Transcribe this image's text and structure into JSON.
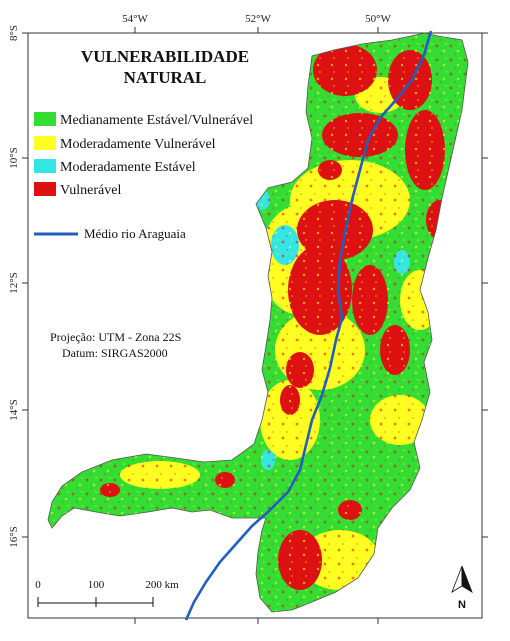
{
  "map": {
    "title_line1": "VULNERABILIDADE",
    "title_line2": "NATURAL",
    "legend": [
      {
        "label": "Medianamente Estável/Vulnerável",
        "color": "#33dd33"
      },
      {
        "label": "Moderadamente Vulnerável",
        "color": "#ffff22"
      },
      {
        "label": "Moderadamente Estável",
        "color": "#33e5e5"
      },
      {
        "label": "Vulnerável",
        "color": "#dd1111"
      }
    ],
    "river_label": "Médio rio Araguaia",
    "river_color": "#1f5fbf",
    "projection": "Projeção: UTM - Zona 22S",
    "datum": "Datum: SIRGAS2000",
    "longitude_ticks": [
      "54°W",
      "52°W",
      "50°W"
    ],
    "latitude_ticks": [
      "8°S",
      "10°S",
      "12°S",
      "14°S",
      "16°S"
    ],
    "scale_labels": [
      "0",
      "100",
      "200 km"
    ],
    "north_label": "N"
  }
}
